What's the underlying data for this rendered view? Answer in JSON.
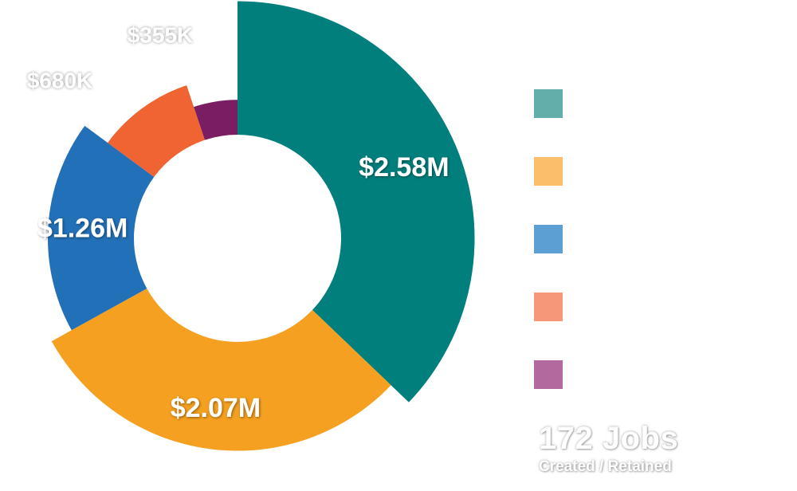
{
  "chart_data": {
    "type": "pie",
    "title": "",
    "series": [
      {
        "value": 2.58,
        "label": "$2.58M",
        "color": "#007f7c",
        "legend_color": "#63aeab",
        "outer_scale": 1.25
      },
      {
        "value": 2.07,
        "label": "$2.07M",
        "color": "#f5a020",
        "legend_color": "#fbbe6b",
        "outer_scale": 1.12
      },
      {
        "value": 1.26,
        "label": "$1.26M",
        "color": "#2270b8",
        "legend_color": "#5b9fd3",
        "outer_scale": 1.0
      },
      {
        "value": 0.68,
        "label": "$680K",
        "color": "#ef6432",
        "legend_color": "#f6977a",
        "outer_scale": 0.85
      },
      {
        "value": 0.355,
        "label": "$355K",
        "color": "#7b1d62",
        "legend_color": "#b26a9e",
        "outer_scale": 0.73
      }
    ],
    "unit": "USD millions"
  },
  "jobs": {
    "value": "172 Jobs",
    "caption": "Created / Retained"
  }
}
